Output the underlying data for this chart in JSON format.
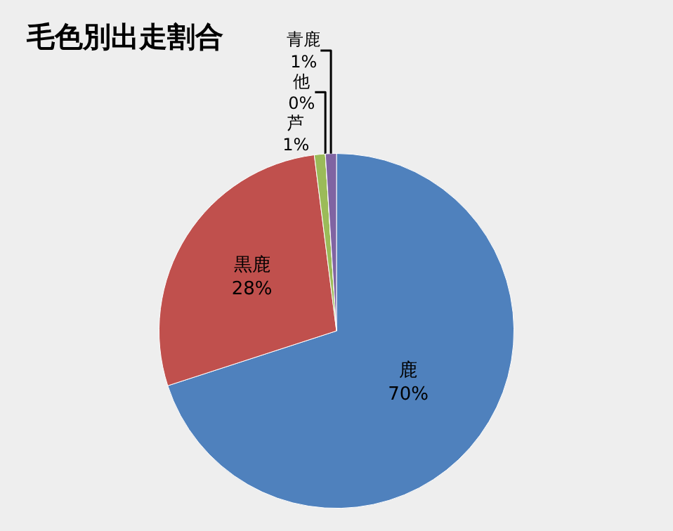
{
  "chart_data": {
    "type": "pie",
    "title": "毛色別出走割合",
    "categories": [
      "鹿",
      "黒鹿",
      "芦",
      "他",
      "青鹿"
    ],
    "values": [
      70,
      28,
      1,
      0,
      1
    ],
    "colors": [
      "#4f81bd",
      "#c0504d",
      "#9bbb59",
      "#4bacc6",
      "#8064a2"
    ],
    "value_labels": [
      "70%",
      "28%",
      "1%",
      "0%",
      "1%"
    ],
    "legend": false
  }
}
